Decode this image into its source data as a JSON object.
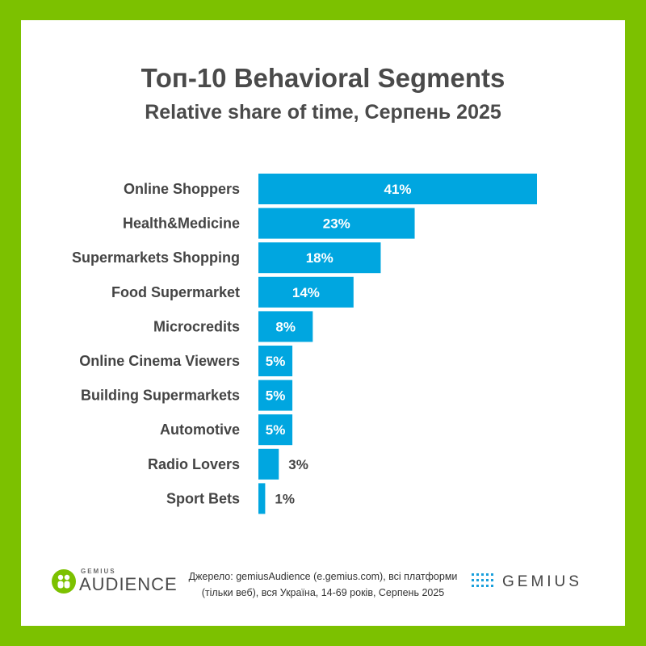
{
  "title": "Топ-10 Behavioral Segments",
  "subtitle": "Relative share of time, Серпень 2025",
  "chart_data": {
    "type": "bar",
    "orientation": "horizontal",
    "title": "Топ-10 Behavioral Segments",
    "subtitle": "Relative share of time, Серпень 2025",
    "categories": [
      "Online Shoppers",
      "Health&Medicine",
      "Supermarkets Shopping",
      "Food Supermarket",
      "Microcredits",
      "Online Cinema Viewers",
      "Building Supermarkets",
      "Automotive",
      "Radio Lovers",
      "Sport Bets"
    ],
    "values": [
      41,
      23,
      18,
      14,
      8,
      5,
      5,
      5,
      3,
      1
    ],
    "value_labels": [
      "41%",
      "23%",
      "18%",
      "14%",
      "8%",
      "5%",
      "5%",
      "5%",
      "3%",
      "1%"
    ],
    "xlim": [
      0,
      41
    ],
    "grid": false,
    "bar_color": "#00a6e0"
  },
  "footer": {
    "logo_left_small": "GEMIUS",
    "logo_left_big": "AUDIENCE",
    "source_line1": "Джерело: gemiusAudience (e.gemius.com), всі платформи",
    "source_line2": "(тільки веб), вся Україна, 14-69 років, Серпень 2025",
    "logo_right": "GEMIUS"
  },
  "colors": {
    "frame": "#7cc100",
    "bar": "#00a6e0",
    "text": "#4a4a4a"
  }
}
